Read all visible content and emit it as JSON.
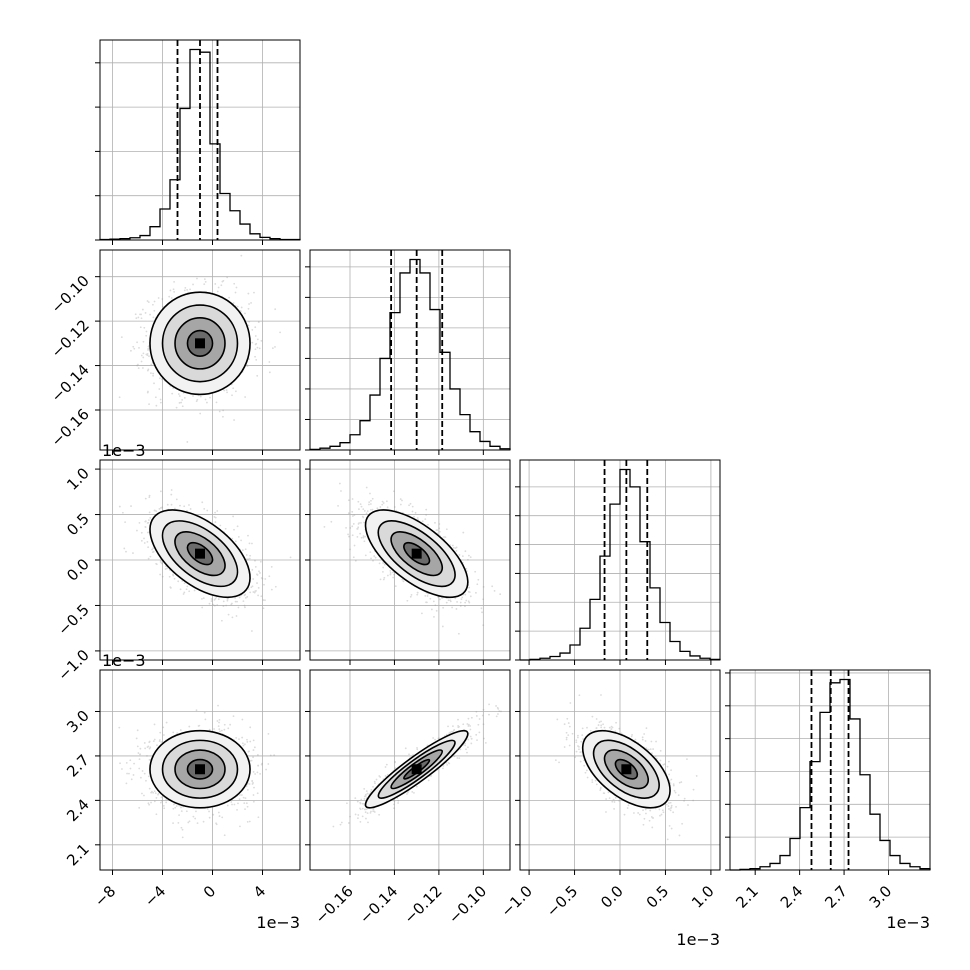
{
  "chart_data": {
    "type": "corner",
    "grid": true,
    "parameters": [
      {
        "id": "p1",
        "range": [
          -9.0,
          7.0
        ],
        "ticks": [
          -8,
          -4,
          0,
          4
        ],
        "tick_labels": [
          "−8",
          "−4",
          "0",
          "4"
        ],
        "offset_label": "1e−3",
        "median": -1.0,
        "quantiles_16_50_84": [
          -2.8,
          -1.0,
          0.4
        ],
        "histogram": {
          "edges_min": -9.0,
          "edges_max": 7.0,
          "counts": [
            1,
            2,
            3,
            5,
            10,
            30,
            70,
            136,
            297,
            430,
            424,
            217,
            105,
            66,
            36,
            14,
            6,
            3,
            1,
            1
          ]
        }
      },
      {
        "id": "p2",
        "range": [
          -0.178,
          -0.088
        ],
        "ticks": [
          -0.16,
          -0.14,
          -0.12,
          -0.1
        ],
        "tick_labels": [
          "−0.16",
          "−0.14",
          "−0.12",
          "−0.10"
        ],
        "offset_label": "",
        "median": -0.13,
        "quantiles_16_50_84": [
          -0.1415,
          -0.13,
          -0.1185
        ],
        "histogram": {
          "edges_min": -0.178,
          "edges_max": -0.088,
          "counts": [
            1,
            3,
            6,
            12,
            25,
            48,
            90,
            150,
            225,
            290,
            312,
            290,
            230,
            160,
            100,
            58,
            30,
            14,
            6,
            2
          ]
        }
      },
      {
        "id": "p3",
        "range": [
          -1.1,
          1.1
        ],
        "ticks": [
          -1.0,
          -0.5,
          0.0,
          0.5,
          1.0
        ],
        "tick_labels": [
          "−1.0",
          "−0.5",
          "0.0",
          "0.5",
          "1.0"
        ],
        "offset_label": "1e−3",
        "median": 0.07,
        "quantiles_16_50_84": [
          -0.17,
          0.07,
          0.3
        ],
        "histogram": {
          "edges_min": -1.1,
          "edges_max": 1.1,
          "counts": [
            0,
            1,
            3,
            6,
            12,
            26,
            55,
            105,
            180,
            270,
            330,
            300,
            205,
            125,
            65,
            32,
            15,
            7,
            3,
            1
          ]
        }
      },
      {
        "id": "p4",
        "range": [
          1.93,
          3.28
        ],
        "ticks": [
          2.1,
          2.4,
          2.7,
          3.0
        ],
        "tick_labels": [
          "2.1",
          "2.4",
          "2.7",
          "3.0"
        ],
        "offset_label": "1e−3",
        "median": 2.61,
        "quantiles_16_50_84": [
          2.48,
          2.61,
          2.73
        ],
        "histogram": {
          "edges_min": 1.93,
          "edges_max": 3.28,
          "counts": [
            0,
            1,
            2,
            5,
            10,
            22,
            48,
            95,
            165,
            240,
            285,
            290,
            230,
            145,
            85,
            45,
            22,
            10,
            5,
            2
          ]
        }
      }
    ],
    "correlations": [
      {
        "x": "p1",
        "y": "p2",
        "rho": 0.0,
        "mean": [
          -1.0,
          -0.13
        ],
        "sd": [
          2.0,
          0.0115
        ]
      },
      {
        "x": "p1",
        "y": "p3",
        "rho": -0.55,
        "mean": [
          -1.0,
          0.07
        ],
        "sd": [
          2.0,
          0.24
        ]
      },
      {
        "x": "p2",
        "y": "p3",
        "rho": -0.65,
        "mean": [
          -0.13,
          0.07
        ],
        "sd": [
          0.0115,
          0.24
        ]
      },
      {
        "x": "p1",
        "y": "p4",
        "rho": 0.0,
        "mean": [
          -1.0,
          2.61
        ],
        "sd": [
          2.0,
          0.13
        ]
      },
      {
        "x": "p2",
        "y": "p4",
        "rho": 0.92,
        "mean": [
          -0.13,
          2.61
        ],
        "sd": [
          0.0115,
          0.13
        ]
      },
      {
        "x": "p3",
        "y": "p4",
        "rho": -0.55,
        "mean": [
          0.07,
          2.61
        ],
        "sd": [
          0.24,
          0.13
        ]
      }
    ]
  }
}
